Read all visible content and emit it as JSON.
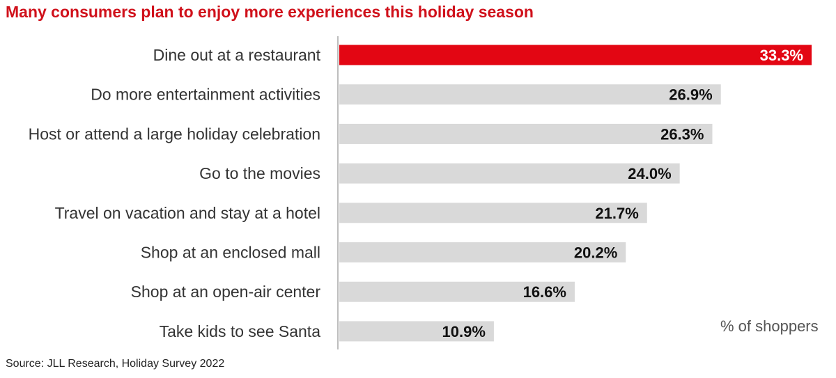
{
  "title": "Many consumers plan to enjoy more experiences this holiday season",
  "source": "Source: JLL Research, Holiday Survey 2022",
  "unit_note": "% of shoppers",
  "colors": {
    "highlight": "#e30613",
    "bar": "#d9d9d9",
    "highlight_label": "#ffffff",
    "label": "#111111"
  },
  "chart_data": {
    "type": "bar",
    "orientation": "horizontal",
    "categories": [
      "Dine out at a restaurant",
      "Do more entertainment activities",
      "Host or attend a large holiday celebration",
      "Go to the movies",
      "Travel on vacation and stay at a hotel",
      "Shop at an enclosed mall",
      "Shop at an open-air center",
      "Take kids to see Santa"
    ],
    "values": [
      33.3,
      26.9,
      26.3,
      24.0,
      21.7,
      20.2,
      16.6,
      10.9
    ],
    "value_labels": [
      "33.3%",
      "26.9%",
      "26.3%",
      "24.0%",
      "21.7%",
      "20.2%",
      "16.6%",
      "10.9%"
    ],
    "highlight_index": 0,
    "xlim": [
      0,
      33.3
    ],
    "grid": false,
    "legend": "none"
  }
}
